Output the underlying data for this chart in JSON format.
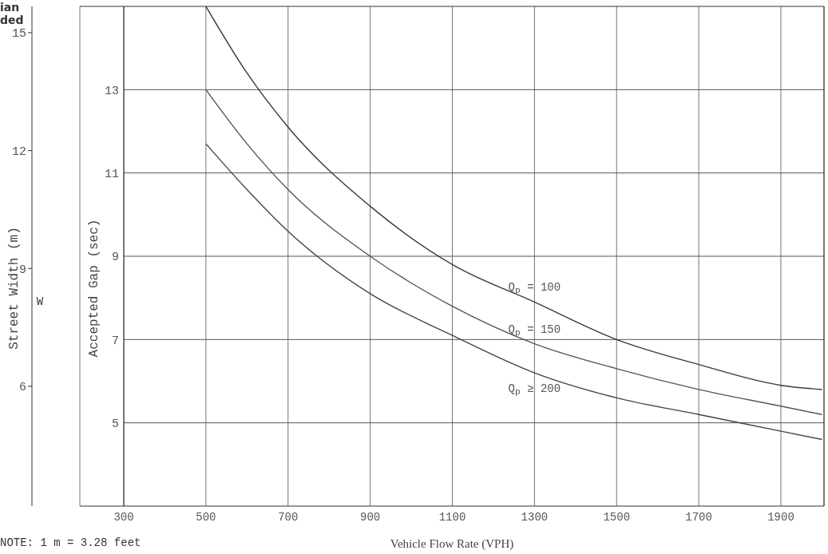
{
  "chart_data": {
    "type": "line",
    "xlabel": "Vehicle Flow Rate (VPH)",
    "ylabel": "Accepted Gap (sec)",
    "y2label": "Street Width (m)",
    "annotations": [
      "ian",
      "ded",
      "W",
      "NOTE: 1 m = 3.28 feet"
    ],
    "xlim": [
      193,
      2005
    ],
    "xticks": [
      300,
      500,
      700,
      900,
      1100,
      1300,
      1500,
      1700,
      1900
    ],
    "ylim": [
      3,
      15
    ],
    "yticks": [
      5,
      7,
      9,
      11,
      13
    ],
    "y2lim": [
      2.95,
      15.67
    ],
    "y2ticks": [
      6,
      9,
      12,
      15
    ],
    "x": [
      500,
      600,
      700,
      900,
      1100,
      1300,
      1500,
      1700,
      1900,
      2000
    ],
    "series": [
      {
        "name": "Q$_{p}$ = 100",
        "color": "#3a3a3a",
        "values": [
          15.0,
          13.4,
          12.1,
          10.2,
          8.8,
          7.9,
          7.0,
          6.4,
          5.9,
          5.8
        ]
      },
      {
        "name": "Q$_{p}$ = 150",
        "color": "#555555",
        "values": [
          13.0,
          11.7,
          10.6,
          9.0,
          7.8,
          6.9,
          6.3,
          5.8,
          5.4,
          5.2
        ]
      },
      {
        "name": "Q$_{p}$ ≥ 200",
        "color": "#444444",
        "values": [
          11.7,
          10.6,
          9.6,
          8.1,
          7.1,
          6.2,
          5.6,
          5.2,
          4.8,
          4.6
        ]
      }
    ],
    "grid": true,
    "marker": "none",
    "line_style": "solid"
  }
}
